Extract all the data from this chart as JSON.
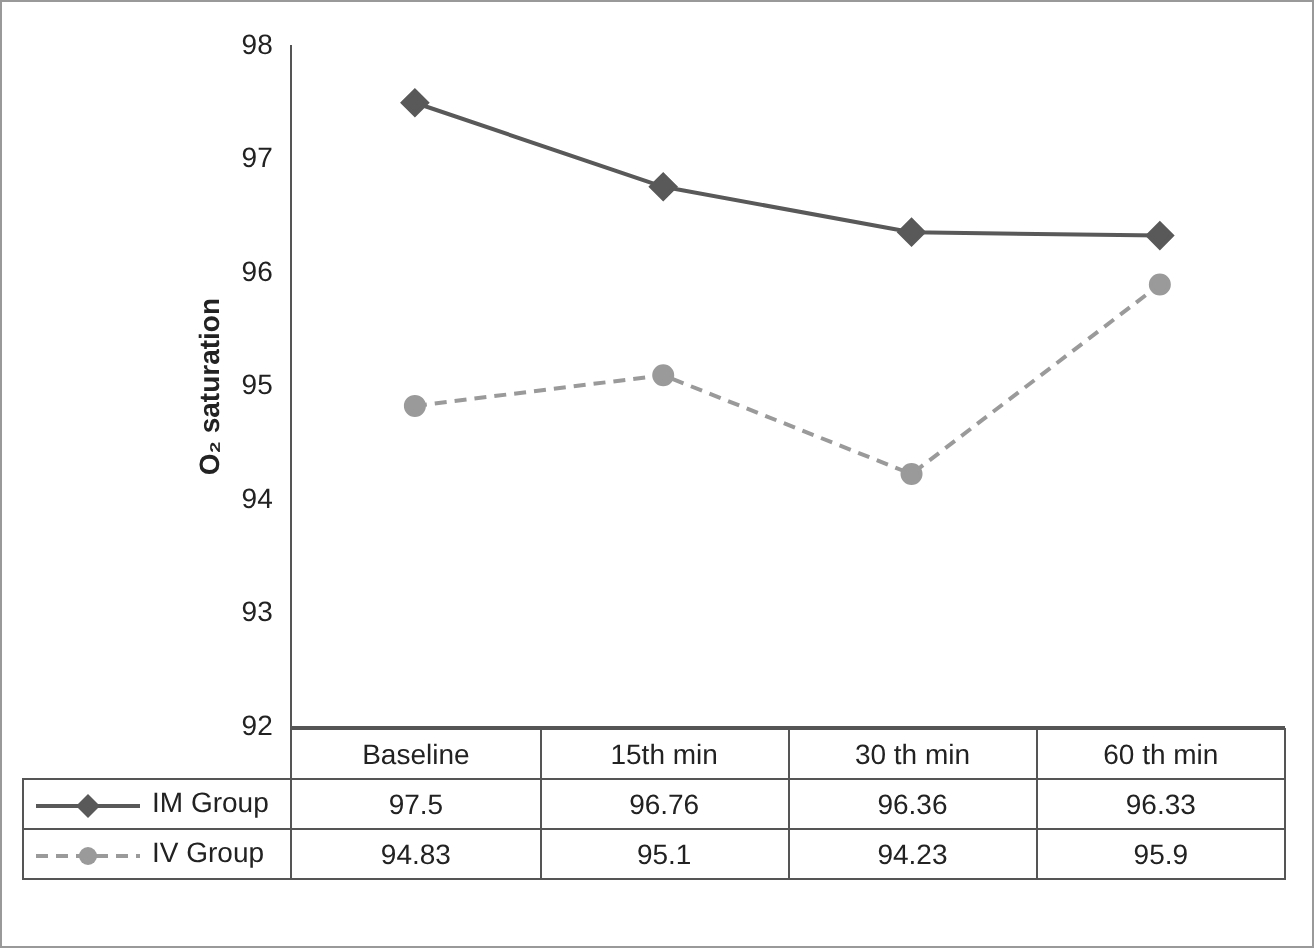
{
  "chart_data": {
    "type": "line",
    "ylabel": "O₂ saturation",
    "categories": [
      "Baseline",
      "15th min",
      "30 th min",
      "60 th min"
    ],
    "series": [
      {
        "name": "IM Group",
        "color": "#595959",
        "values": [
          97.5,
          96.76,
          96.36,
          96.33
        ],
        "marker": "diamond",
        "line_style": "solid"
      },
      {
        "name": "IV Group",
        "color": "#9a9a9a",
        "values": [
          94.83,
          95.1,
          94.23,
          95.9
        ],
        "marker": "circle",
        "line_style": "dashed"
      }
    ],
    "ylim": [
      92,
      98
    ],
    "yticks": [
      92,
      93,
      94,
      95,
      96,
      97,
      98
    ],
    "grid": false,
    "legend": "bottom",
    "data_labels": true
  }
}
